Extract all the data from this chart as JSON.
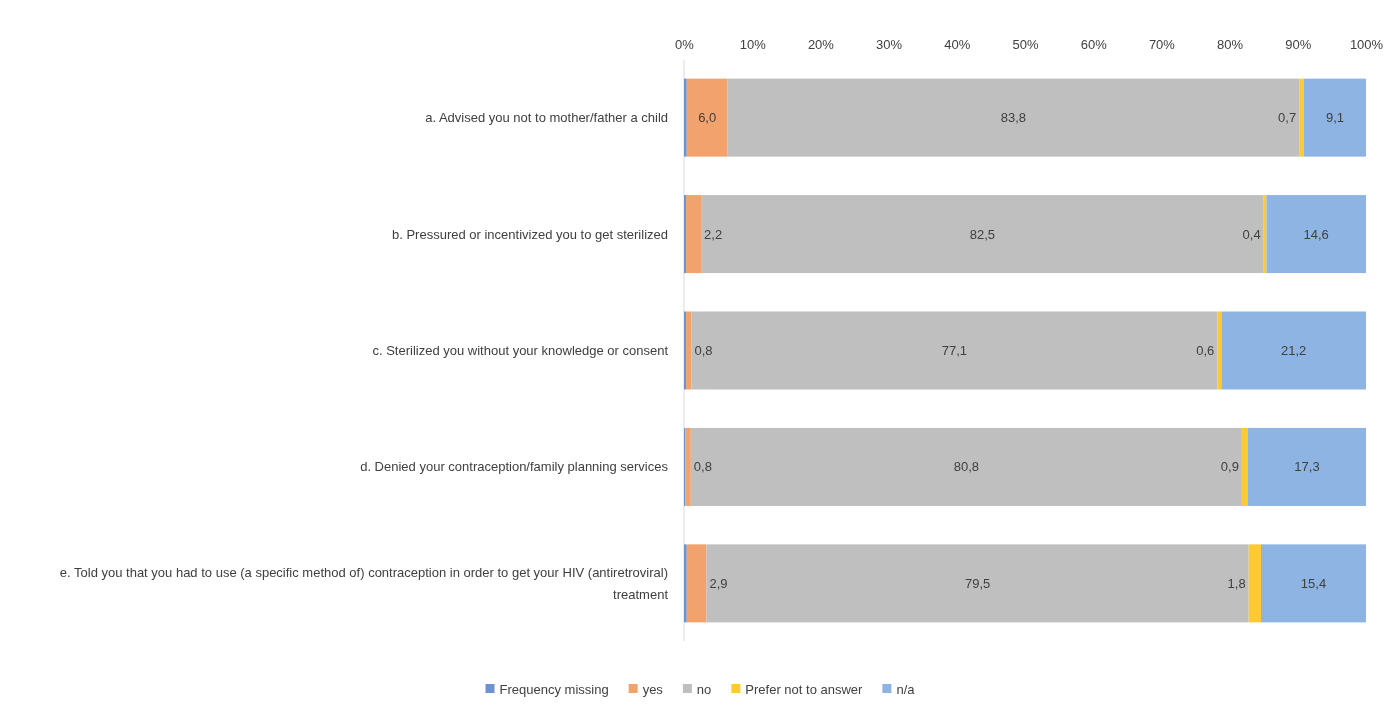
{
  "chart_data": {
    "type": "bar",
    "orientation": "horizontal",
    "stacked": true,
    "categories": [
      "a. Advised you not to mother/father a child",
      "b. Pressured or incentivized you to get sterilized",
      "c. Sterilized you without your knowledge or consent",
      "d. Denied your contraception/family planning services",
      "e. Told you that you had to use (a specific method of) contraception in order to get your HIV (antiretroviral) treatment"
    ],
    "series": [
      {
        "name": "Frequency missing",
        "color": "#6d92d0",
        "values": [
          0.4,
          0.3,
          0.3,
          0.2,
          0.4
        ]
      },
      {
        "name": "yes",
        "color": "#f2a26c",
        "values": [
          6.0,
          2.2,
          0.8,
          0.8,
          2.9
        ],
        "value_labels": [
          "6,0",
          "2,2",
          "0,8",
          "0,8",
          "2,9"
        ]
      },
      {
        "name": "no",
        "color": "#bfbfbf",
        "values": [
          83.8,
          82.5,
          77.1,
          80.8,
          79.5
        ],
        "value_labels": [
          "83,8",
          "82,5",
          "77,1",
          "80,8",
          "79,5"
        ]
      },
      {
        "name": "Prefer not to answer",
        "color": "#ffc934",
        "values": [
          0.7,
          0.4,
          0.6,
          0.9,
          1.8
        ],
        "value_labels": [
          "0,7",
          "0,4",
          "0,6",
          "0,9",
          "1,8"
        ]
      },
      {
        "name": "n/a",
        "color": "#8db4e2",
        "values": [
          9.1,
          14.6,
          21.2,
          17.3,
          15.4
        ],
        "value_labels": [
          "9,1",
          "14,6",
          "21,2",
          "17,3",
          "15,4"
        ]
      }
    ],
    "xlim": [
      0,
      100
    ],
    "xticks": [
      {
        "value": 0,
        "label": "0%"
      },
      {
        "value": 10,
        "label": "10%"
      },
      {
        "value": 20,
        "label": "20%"
      },
      {
        "value": 30,
        "label": "30%"
      },
      {
        "value": 40,
        "label": "40%"
      },
      {
        "value": 50,
        "label": "50%"
      },
      {
        "value": 60,
        "label": "60%"
      },
      {
        "value": 70,
        "label": "70%"
      },
      {
        "value": 80,
        "label": "80%"
      },
      {
        "value": 90,
        "label": "90%"
      },
      {
        "value": 100,
        "label": "100%"
      }
    ],
    "legend": "bottom"
  }
}
